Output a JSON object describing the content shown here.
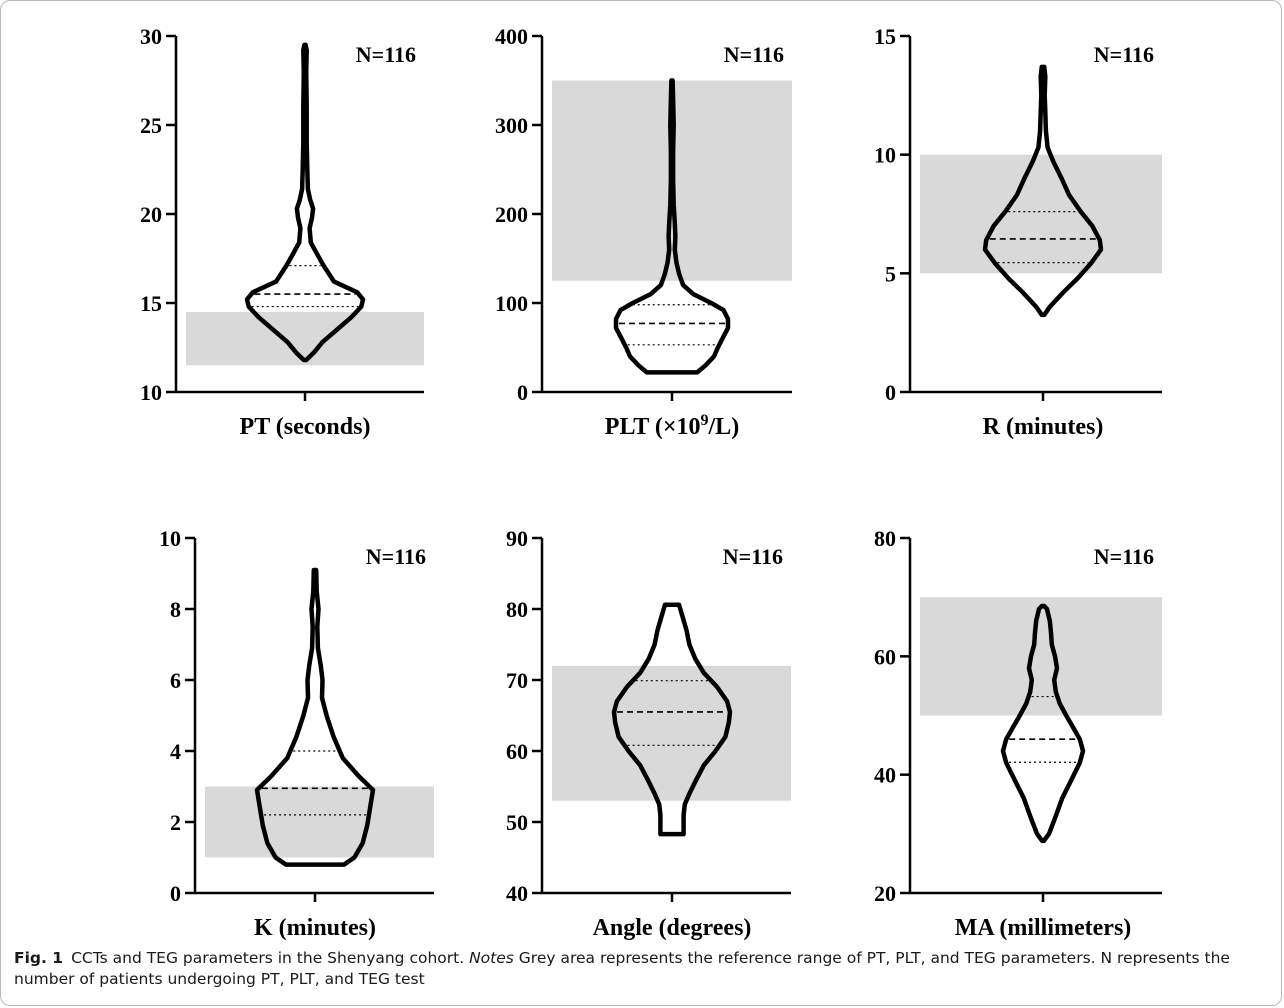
{
  "caption": {
    "label": "Fig. 1",
    "text1": "CCTs and TEG parameters in the Shenyang cohort. ",
    "notes_word": "Notes",
    "text2": " Grey area represents the reference range of PT, PLT, and TEG parameters. N represents the number of patients undergoing PT, PLT, and TEG test"
  },
  "colors": {
    "reference_band": "#d9d9d9",
    "violin_stroke": "#000000"
  },
  "chart_data": [
    {
      "type": "violin",
      "xlabel": "PT (seconds)",
      "n_label": "N=116",
      "ylim": [
        10,
        30
      ],
      "ticks": [
        10,
        15,
        20,
        25,
        30
      ],
      "tick_labels": [
        "10",
        "15",
        "20",
        "25",
        "30"
      ],
      "reference_range": [
        11.5,
        14.5
      ],
      "median": 15.5,
      "q1": 14.8,
      "q3": 17.1,
      "min": 11.8,
      "max": 29.5,
      "profile": [
        [
          11.8,
          0.02
        ],
        [
          12.2,
          0.15
        ],
        [
          12.8,
          0.3
        ],
        [
          13.5,
          0.55
        ],
        [
          14.2,
          0.8
        ],
        [
          14.8,
          0.97
        ],
        [
          15.2,
          1.0
        ],
        [
          15.6,
          0.9
        ],
        [
          16.2,
          0.5
        ],
        [
          17.1,
          0.32
        ],
        [
          17.8,
          0.2
        ],
        [
          18.4,
          0.1
        ],
        [
          19.2,
          0.08
        ],
        [
          19.8,
          0.12
        ],
        [
          20.3,
          0.14
        ],
        [
          20.8,
          0.09
        ],
        [
          21.4,
          0.05
        ],
        [
          22.5,
          0.04
        ],
        [
          24,
          0.03
        ],
        [
          26,
          0.03
        ],
        [
          28,
          0.02
        ],
        [
          29.2,
          0.03
        ],
        [
          29.5,
          0.01
        ]
      ]
    },
    {
      "type": "violin",
      "xlabel": "PLT (×10",
      "xlabel_sup": "9",
      "xlabel_tail": "/L)",
      "n_label": "N=116",
      "ylim": [
        0,
        400
      ],
      "ticks": [
        0,
        100,
        200,
        300,
        400
      ],
      "tick_labels": [
        "0",
        "100",
        "200",
        "300",
        "400"
      ],
      "reference_range": [
        125,
        350
      ],
      "median": 77,
      "q1": 53,
      "q3": 98,
      "min": 22,
      "max": 350,
      "profile": [
        [
          22,
          0.45
        ],
        [
          30,
          0.6
        ],
        [
          40,
          0.75
        ],
        [
          50,
          0.82
        ],
        [
          60,
          0.9
        ],
        [
          72,
          1.0
        ],
        [
          82,
          1.0
        ],
        [
          92,
          0.92
        ],
        [
          100,
          0.7
        ],
        [
          110,
          0.38
        ],
        [
          120,
          0.2
        ],
        [
          132,
          0.13
        ],
        [
          145,
          0.08
        ],
        [
          160,
          0.05
        ],
        [
          175,
          0.06
        ],
        [
          190,
          0.05
        ],
        [
          210,
          0.03
        ],
        [
          240,
          0.02
        ],
        [
          270,
          0.02
        ],
        [
          300,
          0.03
        ],
        [
          330,
          0.02
        ],
        [
          350,
          0.01
        ]
      ]
    },
    {
      "type": "violin",
      "xlabel": "R (minutes)",
      "n_label": "N=116",
      "ylim": [
        0,
        15
      ],
      "ticks": [
        0,
        5,
        10,
        15
      ],
      "tick_labels": [
        "0",
        "5",
        "10",
        "15"
      ],
      "reference_range": [
        5,
        10
      ],
      "median": 6.45,
      "q1": 5.45,
      "q3": 7.6,
      "min": 3.25,
      "max": 13.7,
      "profile": [
        [
          3.25,
          0.02
        ],
        [
          3.6,
          0.12
        ],
        [
          4.2,
          0.35
        ],
        [
          4.8,
          0.6
        ],
        [
          5.4,
          0.82
        ],
        [
          6.0,
          1.0
        ],
        [
          6.4,
          0.98
        ],
        [
          7.0,
          0.85
        ],
        [
          7.6,
          0.65
        ],
        [
          8.3,
          0.45
        ],
        [
          9.0,
          0.32
        ],
        [
          9.7,
          0.18
        ],
        [
          10.3,
          0.08
        ],
        [
          11.0,
          0.05
        ],
        [
          11.8,
          0.04
        ],
        [
          12.5,
          0.03
        ],
        [
          13.3,
          0.04
        ],
        [
          13.7,
          0.02
        ]
      ]
    },
    {
      "type": "violin",
      "xlabel": "K (minutes)",
      "n_label": "N=116",
      "ylim": [
        0,
        10
      ],
      "ticks": [
        0,
        2,
        4,
        6,
        8,
        10
      ],
      "tick_labels": [
        "0",
        "2",
        "4",
        "6",
        "8",
        "10"
      ],
      "reference_range": [
        1,
        3
      ],
      "median": 2.95,
      "q1": 2.2,
      "q3": 4.0,
      "min": 0.8,
      "max": 9.1,
      "profile": [
        [
          0.8,
          0.5
        ],
        [
          1.0,
          0.68
        ],
        [
          1.4,
          0.82
        ],
        [
          1.9,
          0.9
        ],
        [
          2.4,
          0.95
        ],
        [
          2.9,
          1.0
        ],
        [
          3.3,
          0.75
        ],
        [
          3.8,
          0.48
        ],
        [
          4.4,
          0.32
        ],
        [
          5.0,
          0.2
        ],
        [
          5.5,
          0.12
        ],
        [
          6.0,
          0.13
        ],
        [
          6.4,
          0.1
        ],
        [
          6.9,
          0.05
        ],
        [
          7.5,
          0.04
        ],
        [
          8.0,
          0.06
        ],
        [
          8.5,
          0.03
        ],
        [
          9.1,
          0.02
        ]
      ]
    },
    {
      "type": "violin",
      "xlabel": "Angle (degrees)",
      "n_label": "N=116",
      "ylim": [
        40,
        90
      ],
      "ticks": [
        40,
        50,
        60,
        70,
        80,
        90
      ],
      "tick_labels": [
        "40",
        "50",
        "60",
        "70",
        "80",
        "90"
      ],
      "reference_range": [
        53,
        72
      ],
      "median": 65.5,
      "q1": 60.8,
      "q3": 69.9,
      "min": 48.3,
      "max": 80.6,
      "profile": [
        [
          48.3,
          0.2
        ],
        [
          49.5,
          0.2
        ],
        [
          51,
          0.2
        ],
        [
          52.5,
          0.22
        ],
        [
          54,
          0.3
        ],
        [
          56,
          0.42
        ],
        [
          58,
          0.55
        ],
        [
          60,
          0.75
        ],
        [
          62,
          0.92
        ],
        [
          64,
          0.98
        ],
        [
          65.5,
          1.0
        ],
        [
          67,
          0.95
        ],
        [
          69,
          0.78
        ],
        [
          71,
          0.55
        ],
        [
          73,
          0.4
        ],
        [
          75,
          0.3
        ],
        [
          77,
          0.25
        ],
        [
          79,
          0.18
        ],
        [
          80.6,
          0.12
        ]
      ]
    },
    {
      "type": "violin",
      "xlabel": "MA (millimeters)",
      "n_label": "N=116",
      "ylim": [
        20,
        80
      ],
      "ticks": [
        20,
        40,
        60,
        80
      ],
      "tick_labels": [
        "20",
        "40",
        "60",
        "80"
      ],
      "reference_range": [
        50,
        70
      ],
      "median": 46.0,
      "q1": 42.1,
      "q3": 53.2,
      "min": 28.8,
      "max": 68.5,
      "profile": [
        [
          28.8,
          0.02
        ],
        [
          30,
          0.15
        ],
        [
          33,
          0.32
        ],
        [
          36,
          0.48
        ],
        [
          39,
          0.7
        ],
        [
          42,
          0.92
        ],
        [
          44,
          1.0
        ],
        [
          46,
          0.92
        ],
        [
          48,
          0.75
        ],
        [
          50,
          0.58
        ],
        [
          52,
          0.42
        ],
        [
          54,
          0.32
        ],
        [
          56,
          0.28
        ],
        [
          58,
          0.35
        ],
        [
          60,
          0.3
        ],
        [
          62,
          0.22
        ],
        [
          64,
          0.2
        ],
        [
          66,
          0.17
        ],
        [
          68,
          0.1
        ],
        [
          68.5,
          0.03
        ]
      ]
    }
  ]
}
